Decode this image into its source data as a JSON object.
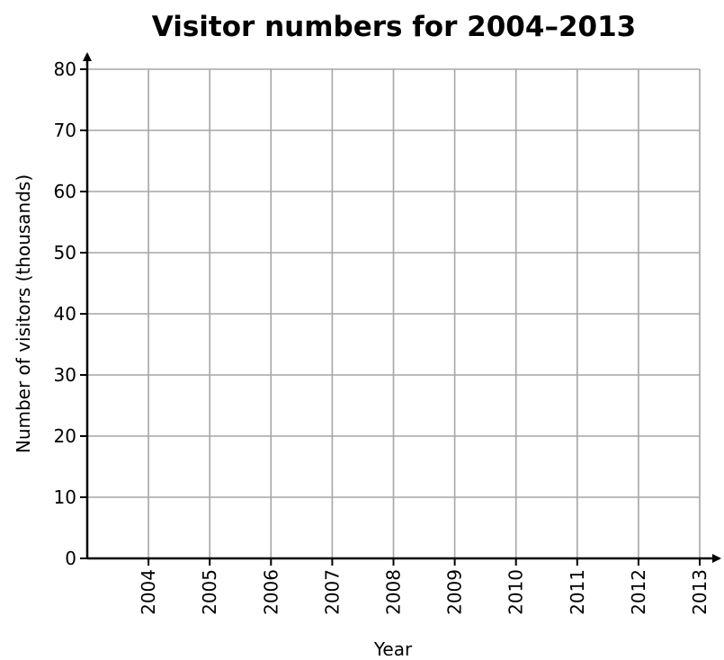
{
  "chart_data": {
    "type": "line",
    "title": "Visitor numbers for 2004–2013",
    "xlabel": "Year",
    "ylabel": "Number of visitors (thousands)",
    "categories": [
      "2004",
      "2005",
      "2006",
      "2007",
      "2008",
      "2009",
      "2010",
      "2011",
      "2012",
      "2013"
    ],
    "y_ticks": [
      "0",
      "10",
      "20",
      "30",
      "40",
      "50",
      "60",
      "70",
      "80"
    ],
    "ylim": [
      0,
      80
    ],
    "grid": true,
    "series": [],
    "colors": {
      "grid": "#a6a6a6",
      "axis": "#000000"
    }
  }
}
